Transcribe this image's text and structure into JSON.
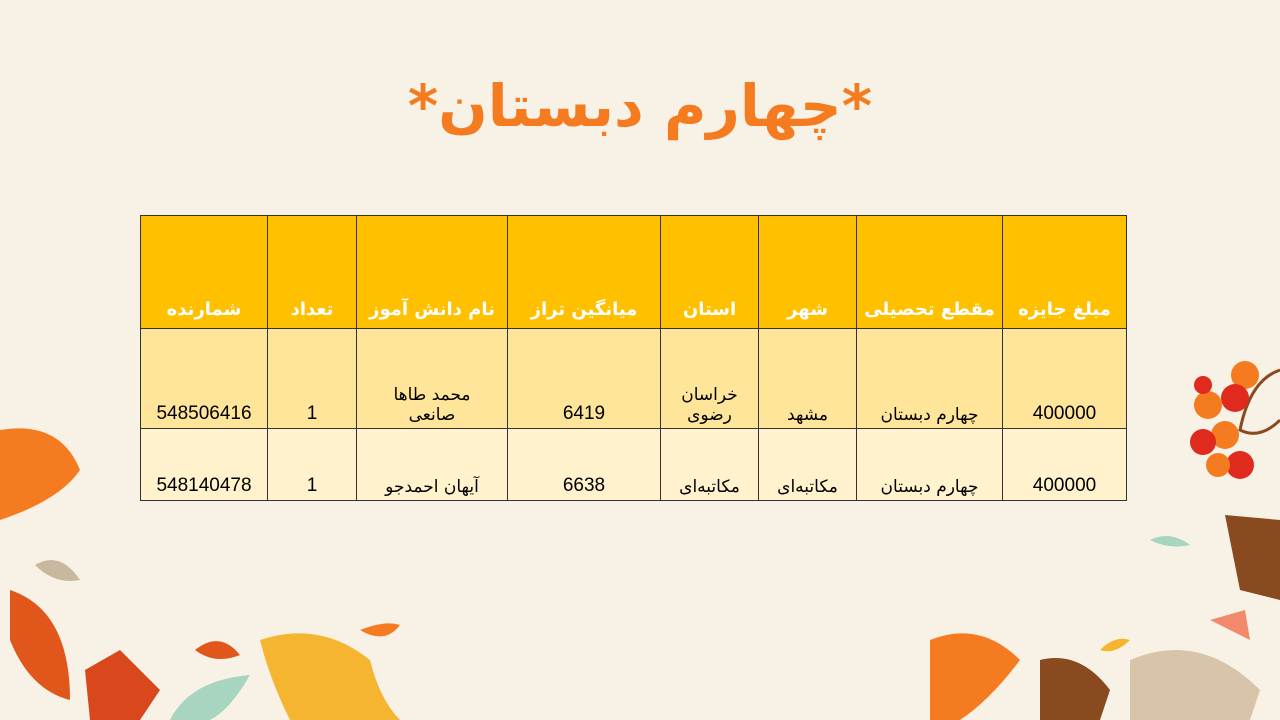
{
  "title": "*چهارم دبستان*",
  "table": {
    "headers": [
      "مبلغ جایزه",
      "مقطع تحصیلی",
      "شهر",
      "استان",
      "میانگین تراز",
      "نام دانش آموز",
      "تعداد",
      "شمارنده"
    ],
    "rows": [
      [
        "400000",
        "چهارم دبستان",
        "مشهد",
        "خراسان رضوی",
        "6419",
        "محمد طاها صانعی",
        "1",
        "548506416"
      ],
      [
        "400000",
        "چهارم دبستان",
        "مکاتبه‌ای",
        "مکاتبه‌ای",
        "6638",
        "آیهان احمدجو",
        "1",
        "548140478"
      ]
    ]
  },
  "colors": {
    "title": "#f47b20",
    "header": "#ffc000",
    "row_odd": "#ffe599",
    "row_even": "#fff2cc",
    "background": "#f8f1e6"
  }
}
